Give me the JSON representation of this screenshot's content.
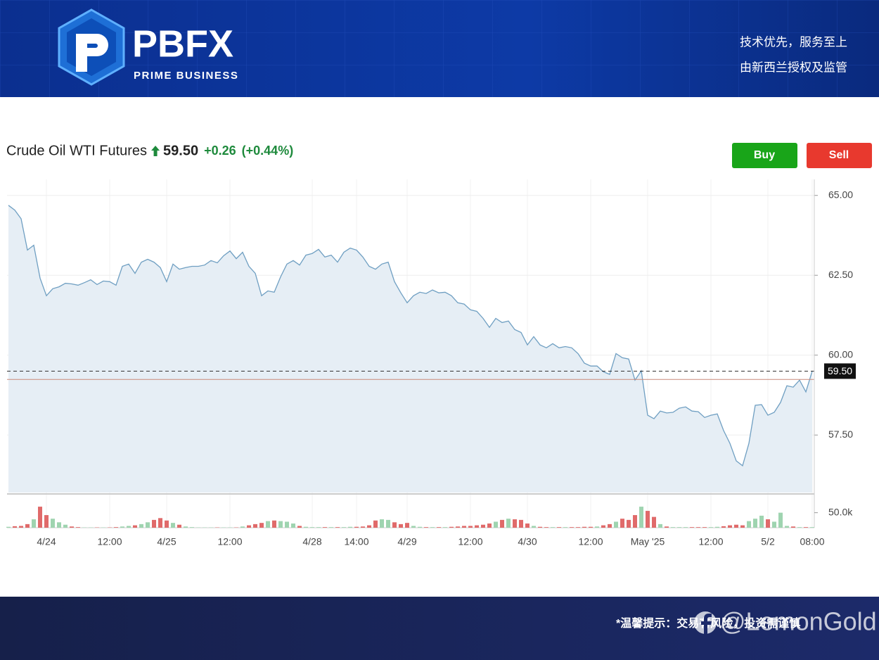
{
  "header": {
    "logo": "PBFX",
    "logo_sub": "PRIME BUSINESS",
    "slogan": "技术优先，服务至上",
    "regulation": "由新西兰授权及监管"
  },
  "toolbar": {
    "buy": "Buy",
    "sell": "Sell"
  },
  "chart_data": {
    "type": "area",
    "title": "Crude Oil WTI Futures",
    "last_price": {
      "value": 59.5,
      "label": "59.50"
    },
    "change": {
      "value": 0.26,
      "label": "+0.26"
    },
    "change_percent": {
      "value": 0.44,
      "label": "(+0.44%)"
    },
    "reference_line": 59.24,
    "color": "#6f9fc2",
    "fill": "#e6eef5",
    "grid": true,
    "ylim": [
      55.7,
      65.5
    ],
    "yticks": [
      {
        "value": 57.5,
        "label": "57.50"
      },
      {
        "value": 60,
        "label": "60.00"
      },
      {
        "value": 62.5,
        "label": "62.50"
      },
      {
        "value": 65,
        "label": "65.00"
      }
    ],
    "categories": [
      null,
      null,
      null,
      null,
      null,
      null,
      "4/24",
      null,
      null,
      null,
      null,
      null,
      null,
      null,
      null,
      null,
      "12:00",
      null,
      null,
      null,
      null,
      null,
      null,
      null,
      null,
      "4/25",
      null,
      null,
      null,
      null,
      null,
      null,
      null,
      null,
      null,
      "12:00",
      null,
      null,
      null,
      null,
      null,
      null,
      null,
      null,
      null,
      null,
      null,
      null,
      "4/28",
      null,
      null,
      null,
      null,
      null,
      null,
      "14:00",
      null,
      null,
      null,
      null,
      null,
      null,
      null,
      "4/29",
      null,
      null,
      null,
      null,
      null,
      null,
      null,
      null,
      null,
      "12:00",
      null,
      null,
      null,
      null,
      null,
      null,
      null,
      null,
      "4/30",
      null,
      null,
      null,
      null,
      null,
      null,
      null,
      null,
      null,
      "12:00",
      null,
      null,
      null,
      null,
      null,
      null,
      null,
      null,
      "May '25",
      null,
      null,
      null,
      null,
      null,
      null,
      null,
      null,
      null,
      "12:00",
      null,
      null,
      null,
      null,
      null,
      null,
      null,
      null,
      "5/2",
      null,
      null,
      null,
      null,
      null,
      null,
      "08:00"
    ],
    "values": [
      64.69,
      64.54,
      64.27,
      63.29,
      63.44,
      62.41,
      61.86,
      62.08,
      62.14,
      62.25,
      62.23,
      62.19,
      62.27,
      62.36,
      62.21,
      62.32,
      62.3,
      62.19,
      62.78,
      62.85,
      62.56,
      62.91,
      63.0,
      62.91,
      62.74,
      62.3,
      62.85,
      62.69,
      62.74,
      62.78,
      62.78,
      62.82,
      62.96,
      62.89,
      63.11,
      63.26,
      63.02,
      63.22,
      62.78,
      62.56,
      61.86,
      62.01,
      61.97,
      62.45,
      62.85,
      62.96,
      62.82,
      63.13,
      63.18,
      63.31,
      63.07,
      63.13,
      62.91,
      63.22,
      63.35,
      63.29,
      63.07,
      62.78,
      62.69,
      62.85,
      62.91,
      62.3,
      61.95,
      61.64,
      61.86,
      61.97,
      61.93,
      62.04,
      61.95,
      61.97,
      61.86,
      61.64,
      61.6,
      61.42,
      61.37,
      61.15,
      60.87,
      61.15,
      61.02,
      61.07,
      60.8,
      60.71,
      60.32,
      60.58,
      60.32,
      60.23,
      60.36,
      60.23,
      60.27,
      60.23,
      60.05,
      59.75,
      59.66,
      59.66,
      59.48,
      59.4,
      60.05,
      59.92,
      59.88,
      59.22,
      59.51,
      58.12,
      58.01,
      58.25,
      58.19,
      58.21,
      58.34,
      58.38,
      58.25,
      58.23,
      58.05,
      58.12,
      58.16,
      57.64,
      57.24,
      56.69,
      56.54,
      57.24,
      58.43,
      58.45,
      58.12,
      58.21,
      58.52,
      59.04,
      59.0,
      59.22,
      58.85,
      59.5
    ],
    "volume": {
      "up_color": "#9fd4b0",
      "down_color": "#e06a6a",
      "ylim": [
        0,
        110000
      ],
      "yticks": [
        {
          "value": 50000,
          "label": "50.0k"
        }
      ],
      "values": [
        3000,
        5000,
        6000,
        12000,
        28000,
        70000,
        42000,
        30000,
        18000,
        10000,
        4000,
        2000,
        1000,
        1000,
        1000,
        1000,
        1000,
        2000,
        4000,
        6000,
        8000,
        12000,
        18000,
        26000,
        32000,
        24000,
        16000,
        10000,
        4000,
        2000,
        1000,
        1000,
        1000,
        1000,
        1000,
        1000,
        1000,
        4000,
        8000,
        12000,
        16000,
        22000,
        24000,
        22000,
        20000,
        14000,
        6000,
        3000,
        2000,
        2000,
        2000,
        2000,
        2000,
        2000,
        3000,
        3000,
        4000,
        8000,
        24000,
        28000,
        26000,
        18000,
        12000,
        16000,
        6000,
        3000,
        2000,
        2000,
        2000,
        2000,
        3000,
        4000,
        6000,
        6000,
        8000,
        10000,
        14000,
        20000,
        26000,
        30000,
        28000,
        26000,
        14000,
        6000,
        3000,
        2000,
        2000,
        2000,
        2000,
        2000,
        2000,
        3000,
        3000,
        4000,
        8000,
        12000,
        20000,
        30000,
        26000,
        42000,
        70000,
        56000,
        36000,
        12000,
        4000,
        2000,
        2000,
        2000,
        2000,
        2000,
        2000,
        2000,
        3000,
        5000,
        8000,
        10000,
        8000,
        22000,
        30000,
        40000,
        28000,
        20000,
        50000,
        6000,
        4000,
        2000,
        2000,
        2000
      ]
    }
  },
  "footer": {
    "notice": "*温馨提示：交易有风险，投资需谨慎",
    "watermark": "@LemonGold"
  }
}
